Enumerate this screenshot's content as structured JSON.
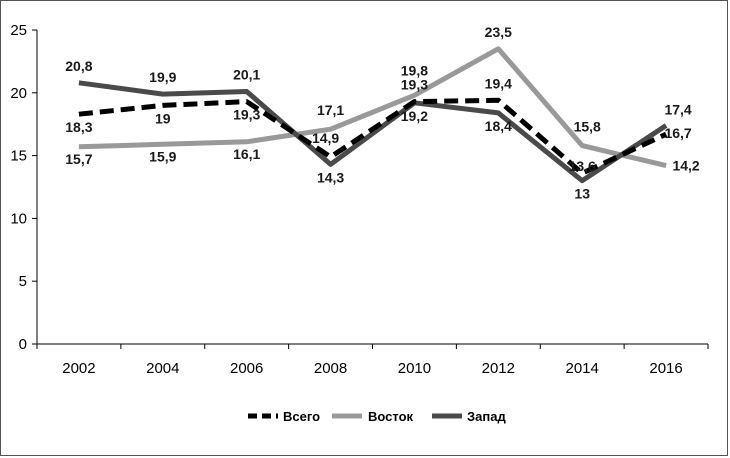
{
  "chart_data": {
    "type": "line",
    "title": "",
    "xlabel": "",
    "ylabel": "",
    "x": [
      "2002",
      "2004",
      "2006",
      "2008",
      "2010",
      "2012",
      "2014",
      "2016"
    ],
    "ylim": [
      0,
      25
    ],
    "yticks": [
      "0",
      "5",
      "10",
      "15",
      "20",
      "25"
    ],
    "grid": false,
    "legend_position": "bottom",
    "series": [
      {
        "name": "Всего",
        "values": [
          18.3,
          19,
          19.3,
          14.9,
          19.3,
          19.4,
          13.6,
          16.7
        ],
        "labels": [
          "18,3",
          "19",
          "19,3",
          "14,9",
          "19,3",
          "19,4",
          "13,6",
          "16,7"
        ],
        "color": "#000000",
        "style": "dashed"
      },
      {
        "name": "Восток",
        "values": [
          15.7,
          15.9,
          16.1,
          17.1,
          19.8,
          23.5,
          15.8,
          14.2
        ],
        "labels": [
          "15,7",
          "15,9",
          "16,1",
          "17,1",
          "19,8",
          "23,5",
          "15,8",
          "14,2"
        ],
        "color": "#999999",
        "style": "solid"
      },
      {
        "name": "Запад",
        "values": [
          20.8,
          19.9,
          20.1,
          14.3,
          19.2,
          18.4,
          13,
          17.4
        ],
        "labels": [
          "20,8",
          "19,9",
          "20,1",
          "14,3",
          "19,2",
          "18,4",
          "13",
          "17,4"
        ],
        "color": "#4a4a4a",
        "style": "solid"
      }
    ]
  }
}
